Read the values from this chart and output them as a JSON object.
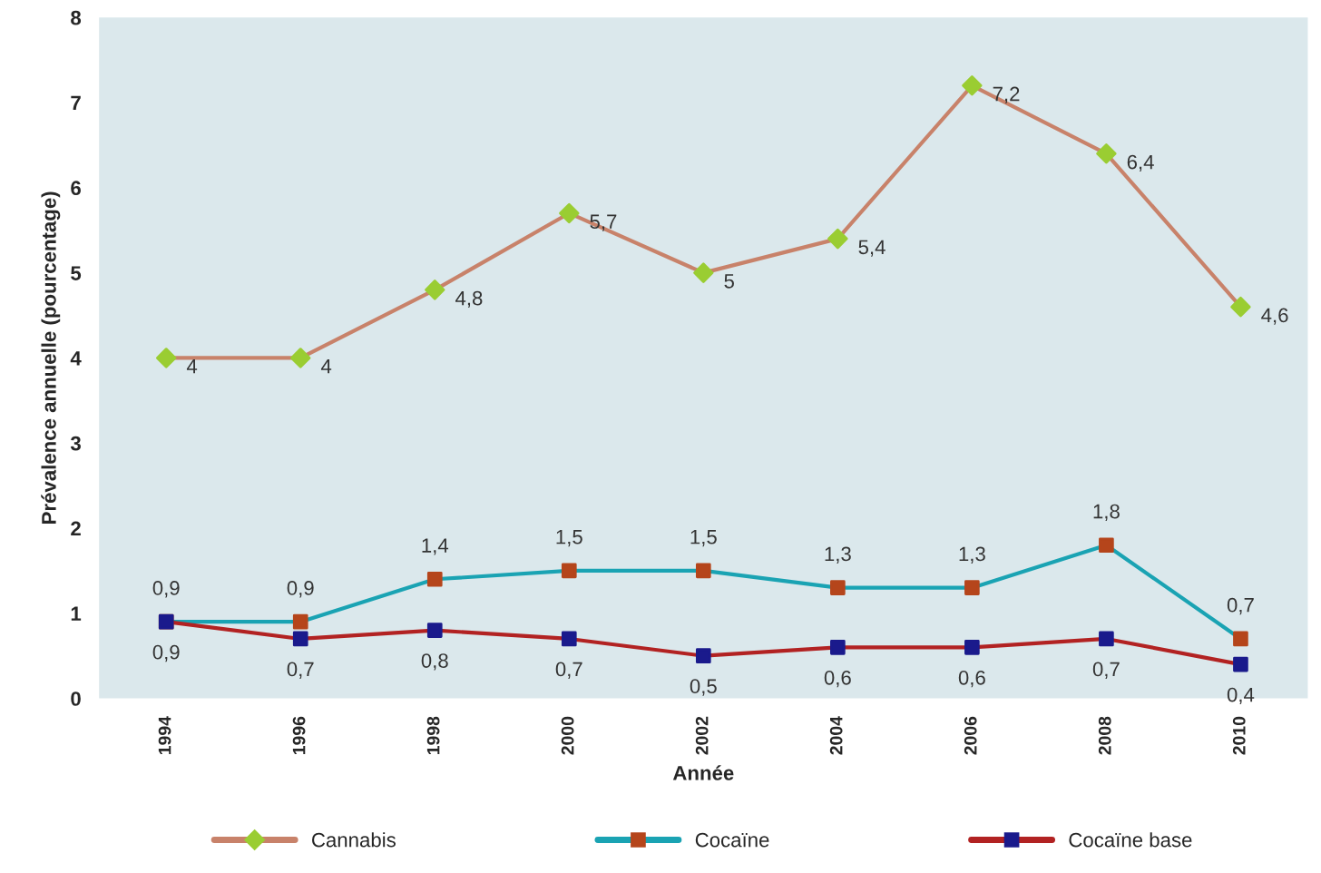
{
  "chart_data": {
    "type": "line",
    "xlabel": "Année",
    "ylabel": "Prévalence annuelle (pourcentage)",
    "categories": [
      "1994",
      "1996",
      "1998",
      "2000",
      "2002",
      "2004",
      "2006",
      "2008",
      "2010"
    ],
    "series": [
      {
        "name": "Cannabis",
        "color": "#c8826a",
        "colors": [
          "#9acd32",
          "#9acd32",
          "#9acd32",
          "#9acd32",
          "#9acd32",
          "#9acd32",
          "#9acd32",
          "#9acd32",
          "#9acd32"
        ],
        "marker": "diamond",
        "values": [
          4,
          4,
          4.8,
          5.7,
          5,
          5.4,
          7.2,
          6.4,
          4.6
        ],
        "value_labels": [
          "4",
          "4",
          "4,8",
          "5,7",
          "5",
          "5,4",
          "7,2",
          "6,4",
          "4,6"
        ]
      },
      {
        "name": "Cocaïne",
        "color": "#1aa3b3",
        "colors": [
          "#b5451b",
          "#b5451b",
          "#b5451b",
          "#b5451b",
          "#b5451b",
          "#b5451b",
          "#b5451b",
          "#b5451b",
          "#b5451b"
        ],
        "marker": "square",
        "values": [
          0.9,
          0.9,
          1.4,
          1.5,
          1.5,
          1.3,
          1.3,
          1.8,
          0.7
        ],
        "value_labels": [
          "0,9",
          "0,9",
          "1,4",
          "1,5",
          "1,5",
          "1,3",
          "1,3",
          "1,8",
          "0,7"
        ]
      },
      {
        "name": "Cocaïne base",
        "color": "#b22222",
        "colors": [
          "#1a1a8c",
          "#1a1a8c",
          "#1a1a8c",
          "#1a1a8c",
          "#1a1a8c",
          "#1a1a8c",
          "#1a1a8c",
          "#1a1a8c",
          "#1a1a8c"
        ],
        "marker": "square",
        "values": [
          0.9,
          0.7,
          0.8,
          0.7,
          0.5,
          0.6,
          0.6,
          0.7,
          0.4
        ],
        "value_labels": [
          "0,9",
          "0,7",
          "0,8",
          "0,7",
          "0,5",
          "0,6",
          "0,6",
          "0,7",
          "0,4"
        ]
      }
    ],
    "ylim": [
      0,
      8
    ],
    "yticks": [
      0,
      1,
      2,
      3,
      4,
      5,
      6,
      7,
      8
    ],
    "grid": false,
    "legend": "bottom"
  }
}
